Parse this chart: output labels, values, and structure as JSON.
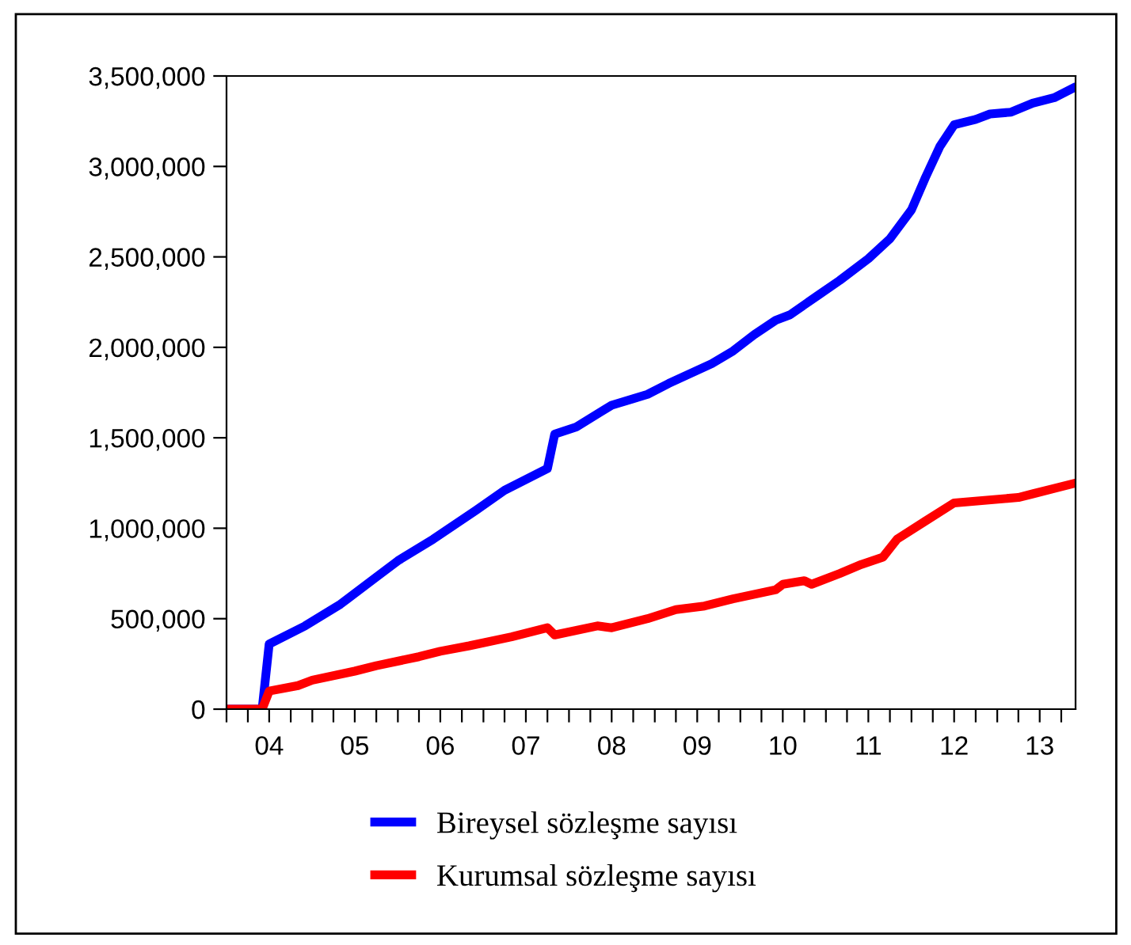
{
  "chart_data": {
    "type": "line",
    "xlim": [
      "2004-01",
      "2013-12"
    ],
    "ylim": [
      0,
      3500000
    ],
    "yticks": [
      {
        "value": 0,
        "label": "0"
      },
      {
        "value": 500000,
        "label": "500,000"
      },
      {
        "value": 1000000,
        "label": "1,000,000"
      },
      {
        "value": 1500000,
        "label": "1,500,000"
      },
      {
        "value": 2000000,
        "label": "2,000,000"
      },
      {
        "value": 2500000,
        "label": "2,500,000"
      },
      {
        "value": 3000000,
        "label": "3,000,000"
      },
      {
        "value": 3500000,
        "label": "3,500,000"
      }
    ],
    "xticks": [
      {
        "value": "2004-01",
        "label": null
      },
      {
        "value": "2004-04",
        "label": null
      },
      {
        "value": "2004-07",
        "label": "04"
      },
      {
        "value": "2004-10",
        "label": null
      },
      {
        "value": "2005-01",
        "label": null
      },
      {
        "value": "2005-04",
        "label": null
      },
      {
        "value": "2005-07",
        "label": "05"
      },
      {
        "value": "2005-10",
        "label": null
      },
      {
        "value": "2006-01",
        "label": null
      },
      {
        "value": "2006-04",
        "label": null
      },
      {
        "value": "2006-07",
        "label": "06"
      },
      {
        "value": "2006-10",
        "label": null
      },
      {
        "value": "2007-01",
        "label": null
      },
      {
        "value": "2007-04",
        "label": null
      },
      {
        "value": "2007-07",
        "label": "07"
      },
      {
        "value": "2007-10",
        "label": null
      },
      {
        "value": "2008-01",
        "label": null
      },
      {
        "value": "2008-04",
        "label": null
      },
      {
        "value": "2008-07",
        "label": "08"
      },
      {
        "value": "2008-10",
        "label": null
      },
      {
        "value": "2009-01",
        "label": null
      },
      {
        "value": "2009-04",
        "label": null
      },
      {
        "value": "2009-07",
        "label": "09"
      },
      {
        "value": "2009-10",
        "label": null
      },
      {
        "value": "2010-01",
        "label": null
      },
      {
        "value": "2010-04",
        "label": null
      },
      {
        "value": "2010-07",
        "label": "10"
      },
      {
        "value": "2010-10",
        "label": null
      },
      {
        "value": "2011-01",
        "label": null
      },
      {
        "value": "2011-04",
        "label": null
      },
      {
        "value": "2011-07",
        "label": "11"
      },
      {
        "value": "2011-10",
        "label": null
      },
      {
        "value": "2012-01",
        "label": null
      },
      {
        "value": "2012-04",
        "label": null
      },
      {
        "value": "2012-07",
        "label": "12"
      },
      {
        "value": "2012-10",
        "label": null
      },
      {
        "value": "2013-01",
        "label": null
      },
      {
        "value": "2013-04",
        "label": null
      },
      {
        "value": "2013-07",
        "label": "13"
      },
      {
        "value": "2013-10",
        "label": null
      }
    ],
    "grid": false,
    "legend": "bottom",
    "marker": "none",
    "line_style": "solid",
    "series": [
      {
        "name": "Bireysel sözleşme sayısı",
        "color": "#0000ff",
        "x": [
          "2004-01",
          "2004-06",
          "2004-07",
          "2004-12",
          "2005-05",
          "2005-10",
          "2006-01",
          "2006-06",
          "2006-12",
          "2007-04",
          "2007-10",
          "2007-11",
          "2008-02",
          "2008-07",
          "2008-12",
          "2009-03",
          "2009-09",
          "2009-12",
          "2010-03",
          "2010-06",
          "2010-08",
          "2010-12",
          "2011-03",
          "2011-07",
          "2011-10",
          "2012-01",
          "2012-03",
          "2012-05",
          "2012-07",
          "2012-10",
          "2012-12",
          "2013-03",
          "2013-06",
          "2013-09",
          "2013-12"
        ],
        "values": [
          0,
          0,
          360000,
          460000,
          580000,
          730000,
          820000,
          940000,
          1100000,
          1210000,
          1330000,
          1520000,
          1560000,
          1680000,
          1740000,
          1800000,
          1910000,
          1980000,
          2070000,
          2150000,
          2180000,
          2290000,
          2370000,
          2490000,
          2600000,
          2760000,
          2940000,
          3110000,
          3230000,
          3260000,
          3290000,
          3300000,
          3350000,
          3380000,
          3440000
        ]
      },
      {
        "name": "Kurumsal sözleşme sayısı",
        "color": "#ff0000",
        "x": [
          "2004-01",
          "2004-06",
          "2004-07",
          "2004-11",
          "2005-01",
          "2005-07",
          "2005-10",
          "2006-04",
          "2006-07",
          "2006-11",
          "2007-05",
          "2007-10",
          "2007-11",
          "2008-05",
          "2008-07",
          "2008-12",
          "2009-04",
          "2009-08",
          "2009-12",
          "2010-06",
          "2010-07",
          "2010-10",
          "2010-11",
          "2011-03",
          "2011-06",
          "2011-09",
          "2011-11",
          "2012-03",
          "2012-07",
          "2013-04",
          "2013-06",
          "2013-09",
          "2013-12"
        ],
        "values": [
          0,
          0,
          100000,
          130000,
          160000,
          210000,
          240000,
          290000,
          320000,
          350000,
          400000,
          450000,
          410000,
          460000,
          450000,
          500000,
          550000,
          570000,
          610000,
          660000,
          690000,
          710000,
          690000,
          750000,
          800000,
          840000,
          940000,
          1040000,
          1140000,
          1170000,
          1190000,
          1220000,
          1250000
        ]
      }
    ]
  }
}
